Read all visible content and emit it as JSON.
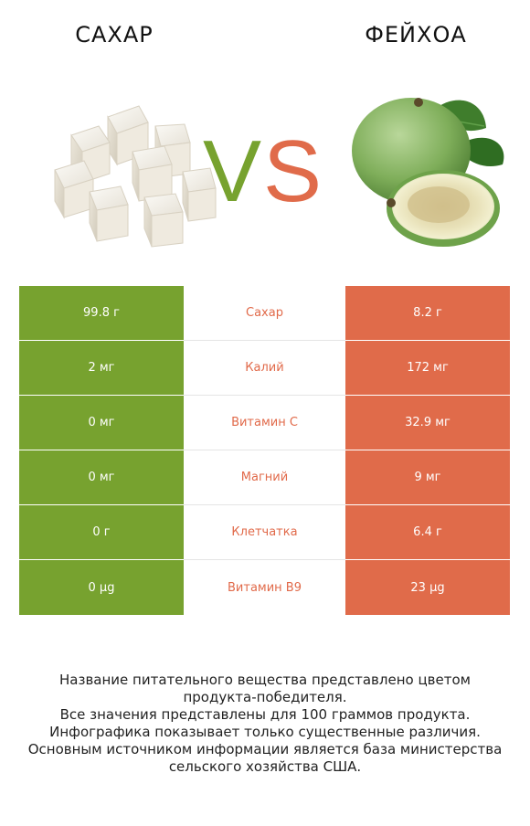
{
  "header": {
    "left_title": "САХАР",
    "right_title": "ФЕЙХОА",
    "vs_left": "V",
    "vs_right": "S"
  },
  "images": {
    "left": "sugar-cubes-image",
    "right": "feijoa-fruit-image"
  },
  "colors": {
    "left_accent": "#77a22f",
    "right_accent": "#e06b4a"
  },
  "rows": [
    {
      "left": "99.8 г",
      "label": "Сахар",
      "right": "8.2 г"
    },
    {
      "left": "2 мг",
      "label": "Калий",
      "right": "172 мг"
    },
    {
      "left": "0 мг",
      "label": "Витамин C",
      "right": "32.9 мг"
    },
    {
      "left": "0 мг",
      "label": "Магний",
      "right": "9 мг"
    },
    {
      "left": "0 г",
      "label": "Клетчатка",
      "right": "6.4 г"
    },
    {
      "left": "0 µg",
      "label": "Витамин B9",
      "right": "23 µg"
    }
  ],
  "notes": [
    "Название питательного вещества представлено цветом",
    "продукта-победителя.",
    "Все значения представлены для 100 граммов продукта.",
    "Инфографика показывает только существенные различия.",
    "Основным источником информации является база министерства",
    "сельского хозяйства США."
  ]
}
